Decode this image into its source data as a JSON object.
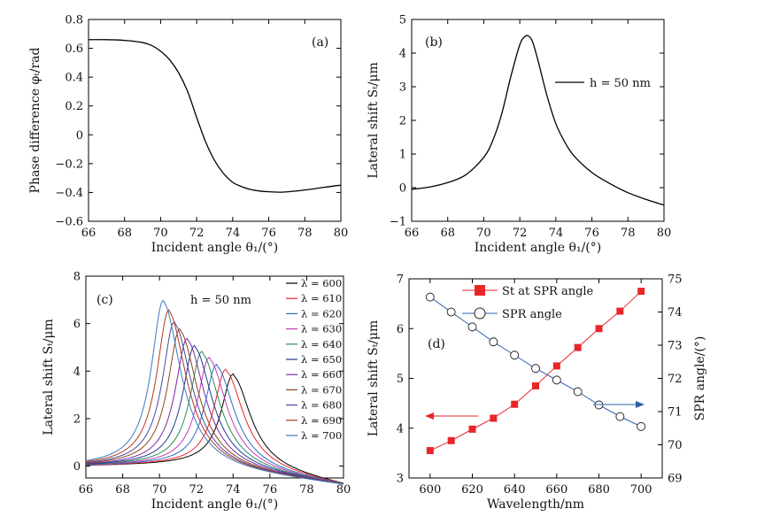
{
  "chart_data": [
    {
      "panel": "a",
      "type": "line",
      "panel_label": "(a)",
      "xlabel": "Incident angle θ₁/(°)",
      "ylabel": "Phase difference φₜ/rad",
      "xlim": [
        66,
        80
      ],
      "ylim": [
        -0.6,
        0.8
      ],
      "xticks": [
        "66",
        "68",
        "70",
        "72",
        "74",
        "76",
        "78",
        "80"
      ],
      "yticks": [
        "−0.6",
        "−0.4",
        "−0.2",
        "0",
        "0.2",
        "0.4",
        "0.6",
        "0.8"
      ],
      "series": [
        {
          "color": "#000000",
          "x": [
            66,
            67,
            68,
            69,
            69.5,
            70,
            70.5,
            71,
            71.5,
            72,
            72.5,
            73,
            73.5,
            74,
            74.5,
            75,
            75.5,
            76,
            76.7,
            77.5,
            78.5,
            79.5,
            80
          ],
          "y": [
            0.66,
            0.66,
            0.655,
            0.64,
            0.62,
            0.58,
            0.52,
            0.43,
            0.3,
            0.12,
            -0.05,
            -0.18,
            -0.27,
            -0.33,
            -0.36,
            -0.38,
            -0.39,
            -0.395,
            -0.398,
            -0.39,
            -0.375,
            -0.357,
            -0.35
          ]
        }
      ]
    },
    {
      "panel": "b",
      "type": "line",
      "panel_label": "(b)",
      "xlabel": "Incident angle θ₁/(°)",
      "ylabel": "Lateral shift Sₜ/μm",
      "xlim": [
        66,
        80
      ],
      "ylim": [
        -1,
        5
      ],
      "xticks": [
        "66",
        "68",
        "70",
        "72",
        "74",
        "76",
        "78",
        "80"
      ],
      "yticks": [
        "−1",
        "0",
        "1",
        "2",
        "3",
        "4",
        "5"
      ],
      "legend": [
        {
          "label": "h = 50 nm",
          "color": "#000000"
        }
      ],
      "series": [
        {
          "color": "#000000",
          "x": [
            66,
            67,
            68,
            69,
            70,
            70.5,
            71,
            71.5,
            72,
            72.3,
            72.5,
            72.7,
            73,
            73.5,
            74,
            74.5,
            75,
            76,
            77,
            78,
            79,
            80
          ],
          "y": [
            -0.05,
            0.02,
            0.15,
            0.38,
            0.9,
            1.4,
            2.2,
            3.3,
            4.25,
            4.5,
            4.5,
            4.35,
            3.8,
            2.75,
            1.9,
            1.35,
            0.95,
            0.45,
            0.12,
            -0.15,
            -0.35,
            -0.52
          ]
        }
      ]
    },
    {
      "panel": "c",
      "type": "line",
      "panel_label": "(c)",
      "annotation": "h = 50 nm",
      "xlabel": "Incident angle θ₁/(°)",
      "ylabel": "Lateral shift Sₜ/μm",
      "xlim": [
        66,
        80
      ],
      "ylim": [
        -0.5,
        8
      ],
      "xticks": [
        "66",
        "68",
        "70",
        "72",
        "74",
        "76",
        "78",
        "80"
      ],
      "yticks": [
        "0",
        "2",
        "4",
        "6",
        "8"
      ],
      "series": [
        {
          "name": "λ = 600",
          "color": "#000000",
          "peak_x": 74.0,
          "peak_y": 3.8
        },
        {
          "name": "λ = 610",
          "color": "#e8262a",
          "peak_x": 73.6,
          "peak_y": 4.0
        },
        {
          "name": "λ = 620",
          "color": "#2b6fc0",
          "peak_x": 73.1,
          "peak_y": 4.2
        },
        {
          "name": "λ = 630",
          "color": "#c23cb7",
          "peak_x": 72.7,
          "peak_y": 4.5
        },
        {
          "name": "λ = 640",
          "color": "#2e8b57",
          "peak_x": 72.3,
          "peak_y": 4.75
        },
        {
          "name": "λ = 650",
          "color": "#1f3a93",
          "peak_x": 71.9,
          "peak_y": 5.0
        },
        {
          "name": "λ = 660",
          "color": "#7a2aa0",
          "peak_x": 71.5,
          "peak_y": 5.3
        },
        {
          "name": "λ = 670",
          "color": "#8b4513",
          "peak_x": 71.1,
          "peak_y": 5.7
        },
        {
          "name": "λ = 680",
          "color": "#4a4a9e",
          "peak_x": 70.8,
          "peak_y": 6.0
        },
        {
          "name": "λ = 690",
          "color": "#b23a1e",
          "peak_x": 70.5,
          "peak_y": 6.5
        },
        {
          "name": "λ = 700",
          "color": "#3a78c2",
          "peak_x": 70.2,
          "peak_y": 6.9
        }
      ]
    },
    {
      "panel": "d",
      "type": "line",
      "panel_label": "(d)",
      "xlabel": "Wavelength/nm",
      "ylabel": "Lateral shift Sₜ/μm",
      "ylabel_right": "SPR angle/(°)",
      "xlim": [
        590,
        710
      ],
      "ylim": [
        3,
        7
      ],
      "ylim_right": [
        69,
        75
      ],
      "xticks": [
        "600",
        "620",
        "640",
        "660",
        "680",
        "700"
      ],
      "yticks": [
        "3",
        "4",
        "5",
        "6",
        "7"
      ],
      "yticks_right": [
        "69",
        "70",
        "71",
        "72",
        "73",
        "74",
        "75"
      ],
      "x": [
        600,
        610,
        620,
        630,
        640,
        650,
        660,
        670,
        680,
        690,
        700
      ],
      "series": [
        {
          "name": "St at SPR angle",
          "color": "#e8262a",
          "marker": "square",
          "axis": "left",
          "values": [
            3.55,
            3.75,
            3.98,
            4.2,
            4.48,
            4.85,
            5.25,
            5.62,
            6.0,
            6.35,
            6.75
          ]
        },
        {
          "name": "SPR angle",
          "color": "#2b5fa8",
          "marker": "circle",
          "axis": "right",
          "values": [
            74.45,
            74.0,
            73.55,
            73.1,
            72.7,
            72.3,
            71.95,
            71.6,
            71.2,
            70.85,
            70.55
          ]
        }
      ]
    }
  ]
}
